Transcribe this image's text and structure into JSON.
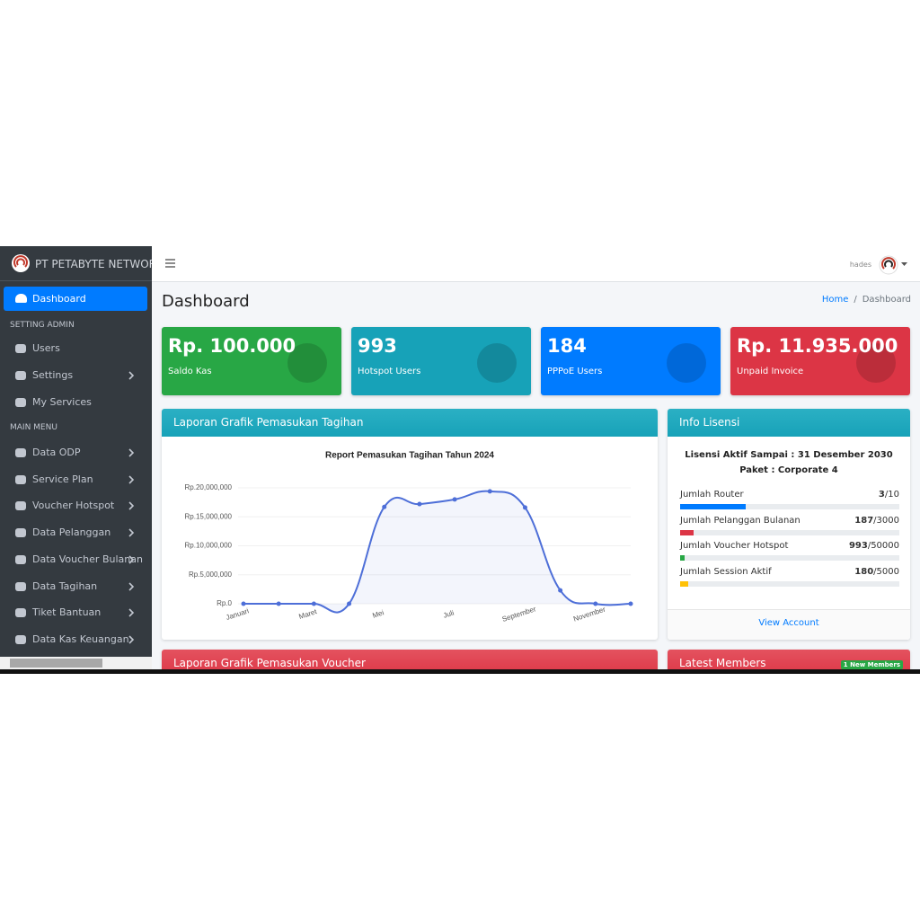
{
  "header": {
    "brand": "PT PETABYTE NETWORK",
    "user": "hades"
  },
  "sidebar": {
    "active": "Dashboard",
    "sections": [
      {
        "title": "SETTING ADMIN",
        "items": [
          "Users",
          "Settings",
          "My Services"
        ]
      },
      {
        "title": "MAIN MENU",
        "items": [
          "Data ODP",
          "Service Plan",
          "Voucher Hotspot",
          "Data Pelanggan",
          "Data Voucher Bulanan",
          "Data Tagihan",
          "Tiket Bantuan",
          "Data Kas Keuangan"
        ]
      }
    ]
  },
  "page": {
    "title": "Dashboard",
    "breadcrumb": [
      "Home",
      "Dashboard"
    ]
  },
  "stat_cards": [
    {
      "value": "Rp. 100.000",
      "label": "Saldo Kas",
      "color": "#28a745"
    },
    {
      "value": 993,
      "label": "Hotspot Users",
      "color": "#17a2b8"
    },
    {
      "value": 184,
      "label": "PPPoE Users",
      "color": "#007bff"
    },
    {
      "value": "Rp. 11.935.000",
      "label": "Unpaid Invoice",
      "color": "#dc3545"
    }
  ],
  "revenue_panel": {
    "header": "Laporan Grafik Pemasukan Tagihan",
    "chart_data": {
      "type": "line",
      "title": "Report Pemasukan Tagihan Tahun 2024",
      "categories": [
        "Januari",
        null,
        "Maret",
        null,
        "Mei",
        null,
        "Juli",
        null,
        "September",
        null,
        "November",
        null
      ],
      "values": [
        0,
        0,
        0,
        0,
        16700000,
        17200000,
        18000000,
        19400000,
        16600000,
        2300000,
        0,
        0
      ],
      "color": "#4e6fd8",
      "ylim": [
        0,
        20000000
      ],
      "yticks": [
        {
          "value": 0,
          "label": "Rp.0"
        },
        {
          "value": 5000000,
          "label": "Rp.5,000,000"
        },
        {
          "value": 10000000,
          "label": "Rp.10,000,000"
        },
        {
          "value": 15000000,
          "label": "Rp.15,000,000"
        },
        {
          "value": 20000000,
          "label": "Rp.20,000,000"
        }
      ],
      "grid": true
    }
  },
  "license": {
    "header": "Info Lisensi",
    "active_until": "Lisensi Aktif Sampai : 31 Desember 2030",
    "package": "Paket : Corporate 4",
    "usage": [
      {
        "label": "Jumlah Router",
        "value": 3,
        "max": 10,
        "color": "#007bff"
      },
      {
        "label": "Jumlah Pelanggan Bulanan",
        "value": 187,
        "max": 3000,
        "color": "#dc3545"
      },
      {
        "label": "Jumlah Voucher Hotspot",
        "value": 993,
        "max": 50000,
        "color": "#28a745"
      },
      {
        "label": "Jumlah Session Aktif",
        "value": 180,
        "max": 5000,
        "color": "#ffc107"
      }
    ],
    "link": "View Account"
  },
  "voucher_panel": {
    "header": "Laporan Grafik Pemasukan Voucher"
  },
  "members_panel": {
    "header": "Latest Members",
    "badge": "1 New Members"
  }
}
